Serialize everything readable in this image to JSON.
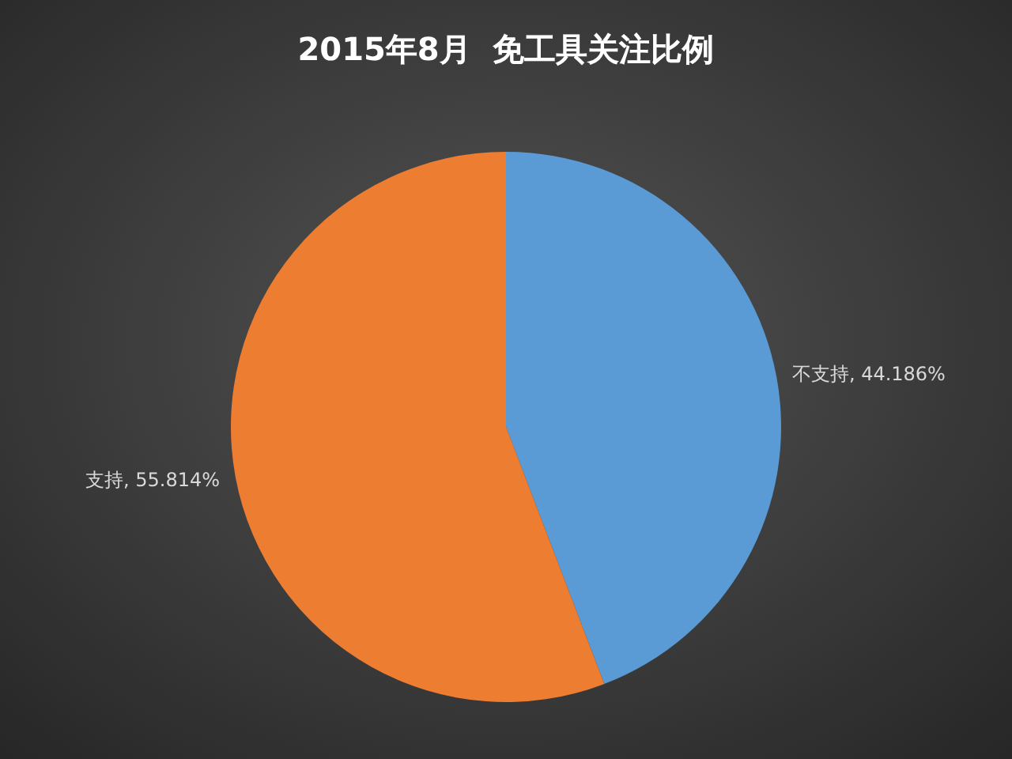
{
  "chart_data": {
    "type": "pie",
    "title": "2015年8月  免工具关注比例",
    "categories": [
      "不支持",
      "支持"
    ],
    "values": [
      44.186,
      55.814
    ],
    "value_labels": [
      ", 44.186%",
      ", 55.814%"
    ],
    "colors": [
      "#5b9bd5",
      "#ed7d31"
    ]
  }
}
